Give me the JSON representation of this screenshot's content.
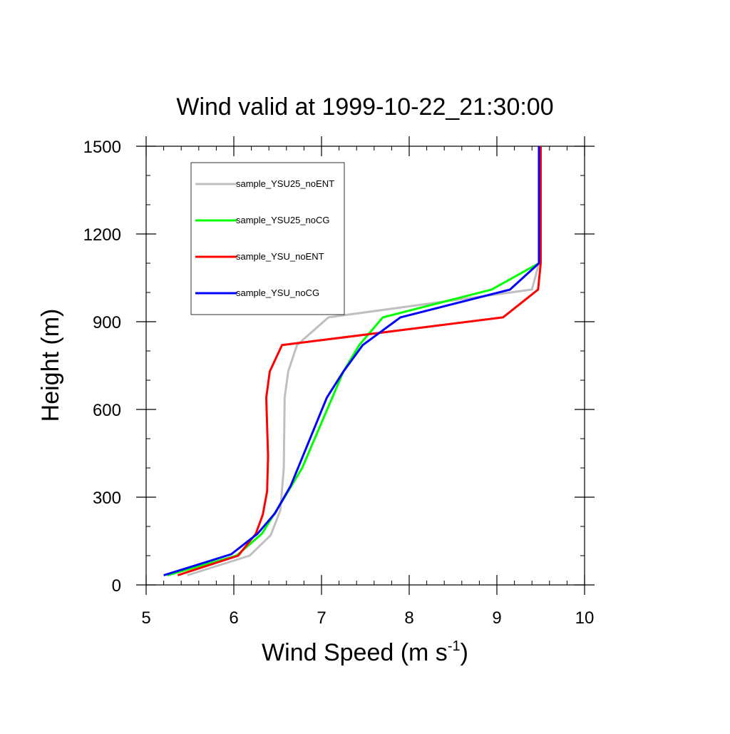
{
  "chart_data": {
    "type": "line",
    "title": "Wind valid at 1999-10-22_21:30:00",
    "xlabel": "Wind Speed (m s",
    "xlabel_superscript": "-1",
    "xlabel_suffix": ")",
    "ylabel": "Height (m)",
    "xlim": [
      5,
      10
    ],
    "ylim": [
      0,
      1500
    ],
    "xticks": [
      5,
      6,
      7,
      8,
      9,
      10
    ],
    "yticks": [
      0,
      300,
      600,
      900,
      1200,
      1500
    ],
    "x_minor_step": 0.2,
    "y_minor_step": 100,
    "grid": false,
    "legend_position": "top-left",
    "series": [
      {
        "name": "sample_YSU25_noENT",
        "color": "#bfbfbf",
        "points": [
          [
            5.47,
            33
          ],
          [
            6.18,
            100
          ],
          [
            6.42,
            170
          ],
          [
            6.53,
            255
          ],
          [
            6.57,
            400
          ],
          [
            6.58,
            640
          ],
          [
            6.62,
            730
          ],
          [
            6.72,
            820
          ],
          [
            7.08,
            915
          ],
          [
            9.4,
            1010
          ],
          [
            9.48,
            1100
          ],
          [
            9.48,
            1500
          ]
        ]
      },
      {
        "name": "sample_YSU25_noCG",
        "color": "#00ff00",
        "points": [
          [
            5.24,
            33
          ],
          [
            6.03,
            100
          ],
          [
            6.32,
            175
          ],
          [
            6.58,
            300
          ],
          [
            6.78,
            400
          ],
          [
            7.25,
            730
          ],
          [
            7.43,
            820
          ],
          [
            7.7,
            915
          ],
          [
            8.94,
            1010
          ],
          [
            9.48,
            1100
          ],
          [
            9.48,
            1500
          ]
        ]
      },
      {
        "name": "sample_YSU_noENT",
        "color": "#ff0000",
        "points": [
          [
            5.36,
            33
          ],
          [
            6.05,
            100
          ],
          [
            6.25,
            175
          ],
          [
            6.33,
            240
          ],
          [
            6.38,
            320
          ],
          [
            6.39,
            440
          ],
          [
            6.37,
            640
          ],
          [
            6.41,
            730
          ],
          [
            6.55,
            820
          ],
          [
            9.07,
            915
          ],
          [
            9.47,
            1010
          ],
          [
            9.5,
            1100
          ],
          [
            9.5,
            1500
          ]
        ]
      },
      {
        "name": "sample_YSU_noCG",
        "color": "#0000ff",
        "points": [
          [
            5.2,
            33
          ],
          [
            5.97,
            105
          ],
          [
            6.27,
            175
          ],
          [
            6.47,
            245
          ],
          [
            6.65,
            340
          ],
          [
            7.06,
            640
          ],
          [
            7.25,
            730
          ],
          [
            7.47,
            820
          ],
          [
            7.9,
            915
          ],
          [
            9.15,
            1010
          ],
          [
            9.48,
            1100
          ],
          [
            9.48,
            1500
          ]
        ]
      }
    ]
  }
}
